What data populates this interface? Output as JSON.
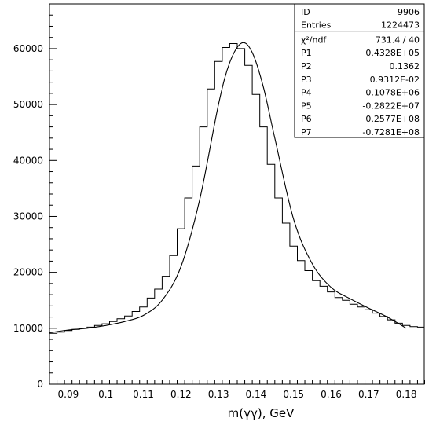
{
  "chart_data": {
    "type": "histogram",
    "title": "",
    "xlabel": "m(γγ), GeV",
    "ylabel": "",
    "xlim": [
      0.085,
      0.185
    ],
    "ylim": [
      0,
      68000
    ],
    "x_ticks": [
      0.09,
      0.1,
      0.11,
      0.12,
      0.13,
      0.14,
      0.15,
      0.16,
      0.17,
      0.18
    ],
    "x_tick_labels": [
      "0.09",
      "0.1",
      "0.11",
      "0.12",
      "0.13",
      "0.14",
      "0.15",
      "0.16",
      "0.17",
      "0.18"
    ],
    "y_ticks": [
      0,
      10000,
      20000,
      30000,
      40000,
      50000,
      60000
    ],
    "y_tick_labels": [
      "0",
      "10000",
      "20000",
      "30000",
      "40000",
      "50000",
      "60000"
    ],
    "bin_edges_start": 0.085,
    "bin_width": 0.002,
    "histogram_values": [
      9100,
      9300,
      9600,
      9800,
      10000,
      10200,
      10500,
      10800,
      11200,
      11700,
      12200,
      13000,
      13800,
      15400,
      17000,
      19300,
      23000,
      27800,
      33300,
      39000,
      46000,
      52800,
      57700,
      60200,
      60900,
      60000,
      57000,
      51800,
      46000,
      39300,
      33300,
      28800,
      24700,
      22100,
      20300,
      18500,
      17500,
      16500,
      15500,
      15000,
      14300,
      13800,
      13300,
      12700,
      12100,
      11500,
      10900,
      10500,
      10300,
      10200
    ],
    "fit_curve": {
      "x": [
        0.085,
        0.09,
        0.095,
        0.1,
        0.105,
        0.11,
        0.115,
        0.12,
        0.125,
        0.13,
        0.133,
        0.1362,
        0.139,
        0.142,
        0.145,
        0.15,
        0.155,
        0.16,
        0.165,
        0.17,
        0.175,
        0.18
      ],
      "y": [
        9200,
        9700,
        10000,
        10500,
        11200,
        12300,
        15000,
        21000,
        33000,
        50000,
        57500,
        61000,
        59300,
        53000,
        44000,
        29500,
        21500,
        17300,
        15300,
        13600,
        12000,
        10000
      ]
    },
    "stats_box": [
      {
        "label": "ID",
        "value": "9906"
      },
      {
        "label": "Entries",
        "value": "1224473"
      },
      {
        "label": "χ²/ndf",
        "value": "731.4    /    40"
      },
      {
        "label": "P1",
        "value": "0.4328E+05"
      },
      {
        "label": "P2",
        "value": "0.1362"
      },
      {
        "label": "P3",
        "value": "0.9312E-02"
      },
      {
        "label": "P4",
        "value": "0.1078E+06"
      },
      {
        "label": "P5",
        "value": "-0.2822E+07"
      },
      {
        "label": "P6",
        "value": "0.2577E+08"
      },
      {
        "label": "P7",
        "value": "-0.7281E+08"
      }
    ],
    "grid": false,
    "legend": "top-right stats box"
  }
}
